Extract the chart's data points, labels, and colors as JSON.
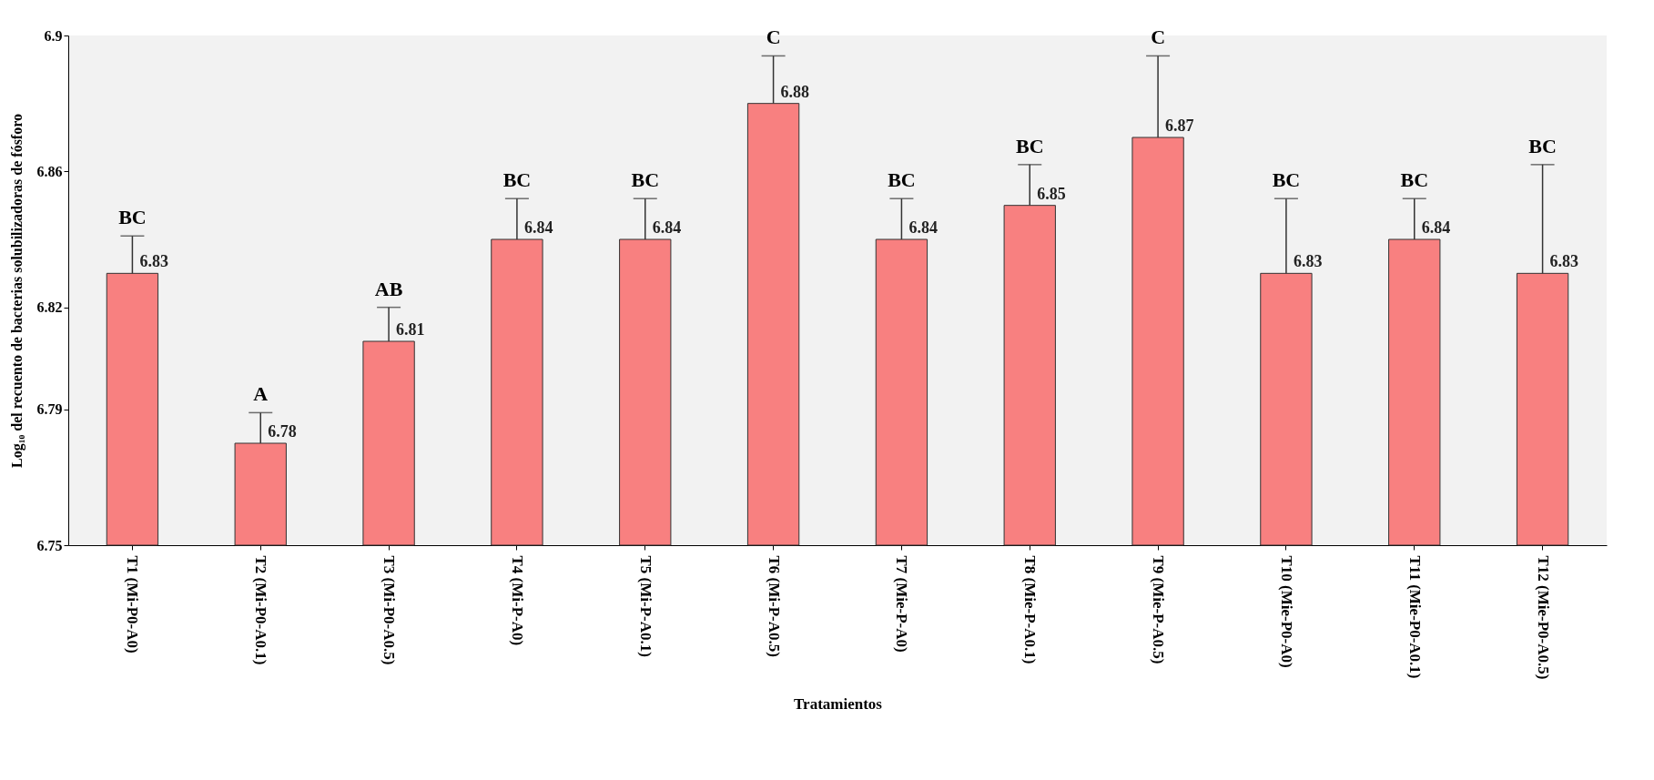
{
  "chart_data": {
    "type": "bar",
    "xlabel": "Tratamientos",
    "ylabel": "Log₁₀ del recuento de bacterias solubilizadoras de fósforo",
    "categories": [
      "T1 (Mi-P0-A0)",
      "T2 (Mi-P0-A0.1)",
      "T3 (Mi-P0-A0.5)",
      "T4 (Mi-P-A0)",
      "T5 (Mi-P-A0.1)",
      "T6 (Mi-P-A0.5)",
      "T7 (Mie-P-A0)",
      "T8 (Mie-P-A0.1)",
      "T9 (Mie-P-A0.5)",
      "T10 (Mie-P0-A0)",
      "T11 (Mie-P0-A0.1)",
      "T12 (Mie-P0-A0.5)"
    ],
    "values": [
      6.83,
      6.78,
      6.81,
      6.84,
      6.84,
      6.88,
      6.84,
      6.85,
      6.87,
      6.83,
      6.84,
      6.83
    ],
    "data_labels": true,
    "errors": [
      [
        6.83,
        6.841
      ],
      [
        6.78,
        6.789
      ],
      [
        6.81,
        6.82
      ],
      [
        6.84,
        6.852
      ],
      [
        6.84,
        6.852
      ],
      [
        6.88,
        6.894
      ],
      [
        6.84,
        6.852
      ],
      [
        6.85,
        6.862
      ],
      [
        6.87,
        6.894
      ],
      [
        6.83,
        6.852
      ],
      [
        6.84,
        6.852
      ],
      [
        6.83,
        6.862
      ]
    ],
    "color": "#f88080",
    "ylim": [
      6.75,
      6.9
    ],
    "yticks": [
      6.75,
      6.79,
      6.82,
      6.86,
      6.9
    ],
    "grid": false,
    "annotations": [
      "BC",
      "A",
      "AB",
      "BC",
      "BC",
      "C",
      "BC",
      "BC",
      "C",
      "BC",
      "BC",
      "BC"
    ]
  }
}
